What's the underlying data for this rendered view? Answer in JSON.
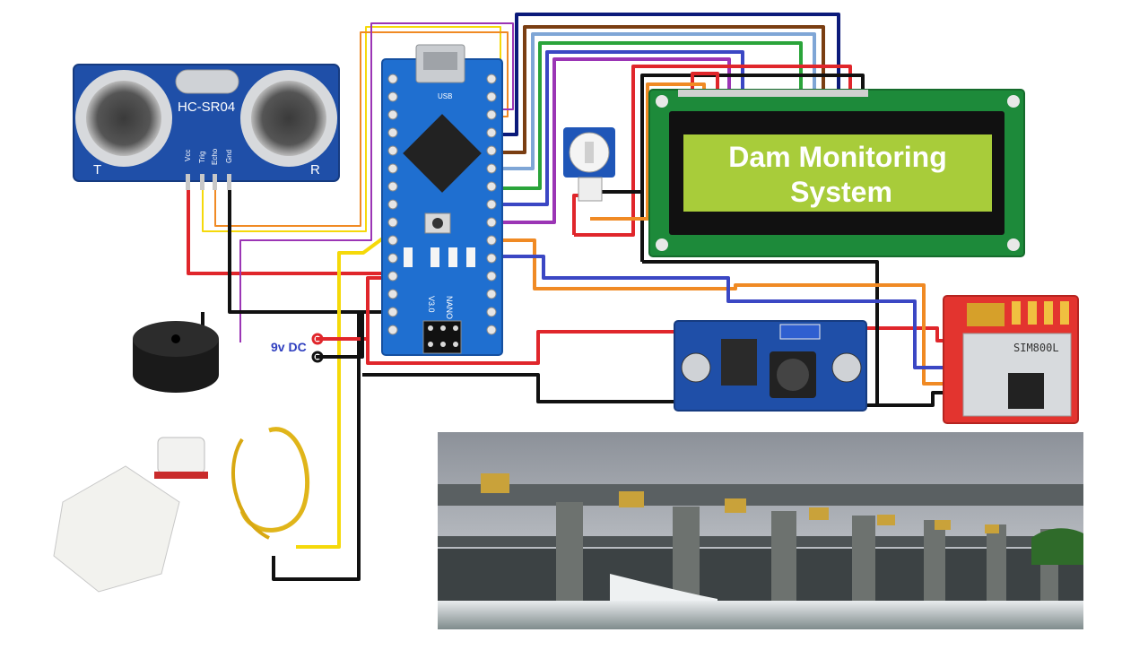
{
  "diagram": {
    "lcd_text_line1": "Dam Monitoring",
    "lcd_text_line2": "System",
    "power_label": "9v DC",
    "ultrasonic": {
      "model": "HC-SR04",
      "pin_vcc": "Vcc",
      "pin_trig": "Trig",
      "pin_echo": "Echo",
      "pin_gnd": "Gnd",
      "side_left": "T",
      "side_right": "R"
    },
    "arduino": {
      "model": "NANO",
      "version": "V3.0",
      "usb_label": "USB"
    },
    "gsm": {
      "model": "SIM800L"
    },
    "colors": {
      "red": "#e0262b",
      "black": "#111111",
      "yellow": "#f5d90a",
      "orange": "#f08a24",
      "blue": "#3b47c4",
      "navy": "#0b1a7a",
      "purple": "#9b35b5",
      "green": "#2aa43a",
      "brown": "#7a3e12",
      "lightblue": "#7fa6d6",
      "lcd_screen": "#a8cc3a",
      "pcb_green": "#1d8a3a",
      "pcb_blue": "#1f4fa8"
    }
  }
}
